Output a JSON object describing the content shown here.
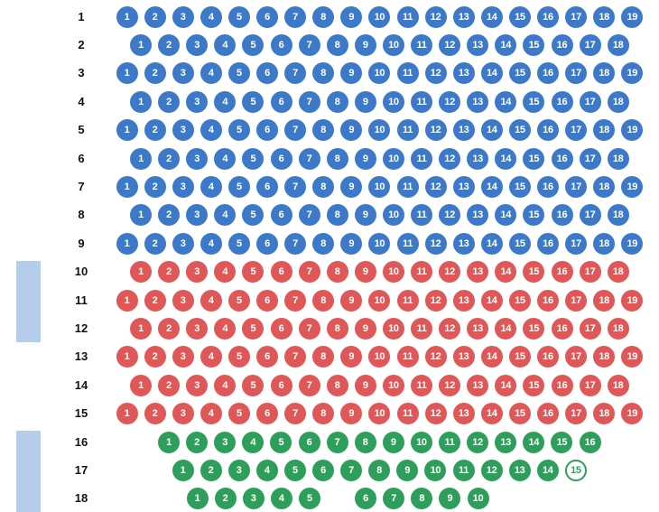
{
  "colors": {
    "blue": "#3d79c9",
    "red": "#e05757",
    "green": "#2e9e5b",
    "side_bar": "#b4cdea"
  },
  "rows": [
    {
      "label": "1",
      "zone": "blue",
      "seats": [
        "1",
        "2",
        "3",
        "4",
        "5",
        "6",
        "7",
        "8",
        "9",
        "10",
        "11",
        "12",
        "13",
        "14",
        "15",
        "16",
        "17",
        "18",
        "19"
      ]
    },
    {
      "label": "2",
      "zone": "blue",
      "seats": [
        "1",
        "2",
        "3",
        "4",
        "5",
        "6",
        "7",
        "8",
        "9",
        "10",
        "11",
        "12",
        "13",
        "14",
        "15",
        "16",
        "17",
        "18"
      ]
    },
    {
      "label": "3",
      "zone": "blue",
      "seats": [
        "1",
        "2",
        "3",
        "4",
        "5",
        "6",
        "7",
        "8",
        "9",
        "10",
        "11",
        "12",
        "13",
        "14",
        "15",
        "16",
        "17",
        "18",
        "19"
      ]
    },
    {
      "label": "4",
      "zone": "blue",
      "seats": [
        "1",
        "2",
        "3",
        "4",
        "5",
        "6",
        "7",
        "8",
        "9",
        "10",
        "11",
        "12",
        "13",
        "14",
        "15",
        "16",
        "17",
        "18"
      ]
    },
    {
      "label": "5",
      "zone": "blue",
      "seats": [
        "1",
        "2",
        "3",
        "4",
        "5",
        "6",
        "7",
        "8",
        "9",
        "10",
        "11",
        "12",
        "13",
        "14",
        "15",
        "16",
        "17",
        "18",
        "19"
      ]
    },
    {
      "label": "6",
      "zone": "blue",
      "seats": [
        "1",
        "2",
        "3",
        "4",
        "5",
        "6",
        "7",
        "8",
        "9",
        "10",
        "11",
        "12",
        "13",
        "14",
        "15",
        "16",
        "17",
        "18"
      ]
    },
    {
      "label": "7",
      "zone": "blue",
      "seats": [
        "1",
        "2",
        "3",
        "4",
        "5",
        "6",
        "7",
        "8",
        "9",
        "10",
        "11",
        "12",
        "13",
        "14",
        "15",
        "16",
        "17",
        "18",
        "19"
      ]
    },
    {
      "label": "8",
      "zone": "blue",
      "seats": [
        "1",
        "2",
        "3",
        "4",
        "5",
        "6",
        "7",
        "8",
        "9",
        "10",
        "11",
        "12",
        "13",
        "14",
        "15",
        "16",
        "17",
        "18"
      ]
    },
    {
      "label": "9",
      "zone": "blue",
      "seats": [
        "1",
        "2",
        "3",
        "4",
        "5",
        "6",
        "7",
        "8",
        "9",
        "10",
        "11",
        "12",
        "13",
        "14",
        "15",
        "16",
        "17",
        "18",
        "19"
      ]
    },
    {
      "label": "10",
      "zone": "red",
      "seats": [
        "1",
        "2",
        "3",
        "4",
        "5",
        "6",
        "7",
        "8",
        "9",
        "10",
        "11",
        "12",
        "13",
        "14",
        "15",
        "16",
        "17",
        "18"
      ]
    },
    {
      "label": "11",
      "zone": "red",
      "seats": [
        "1",
        "2",
        "3",
        "4",
        "5",
        "6",
        "7",
        "8",
        "9",
        "10",
        "11",
        "12",
        "13",
        "14",
        "15",
        "16",
        "17",
        "18",
        "19"
      ]
    },
    {
      "label": "12",
      "zone": "red",
      "seats": [
        "1",
        "2",
        "3",
        "4",
        "5",
        "6",
        "7",
        "8",
        "9",
        "10",
        "11",
        "12",
        "13",
        "14",
        "15",
        "16",
        "17",
        "18"
      ]
    },
    {
      "label": "13",
      "zone": "red",
      "seats": [
        "1",
        "2",
        "3",
        "4",
        "5",
        "6",
        "7",
        "8",
        "9",
        "10",
        "11",
        "12",
        "13",
        "14",
        "15",
        "16",
        "17",
        "18",
        "19"
      ]
    },
    {
      "label": "14",
      "zone": "red",
      "seats": [
        "1",
        "2",
        "3",
        "4",
        "5",
        "6",
        "7",
        "8",
        "9",
        "10",
        "11",
        "12",
        "13",
        "14",
        "15",
        "16",
        "17",
        "18"
      ]
    },
    {
      "label": "15",
      "zone": "red",
      "seats": [
        "1",
        "2",
        "3",
        "4",
        "5",
        "6",
        "7",
        "8",
        "9",
        "10",
        "11",
        "12",
        "13",
        "14",
        "15",
        "16",
        "17",
        "18",
        "19"
      ]
    },
    {
      "label": "16",
      "zone": "green",
      "seats": [
        "1",
        "2",
        "3",
        "4",
        "5",
        "6",
        "7",
        "8",
        "9",
        "10",
        "11",
        "12",
        "13",
        "14",
        "15",
        "16"
      ]
    },
    {
      "label": "17",
      "zone": "green",
      "seats": [
        "1",
        "2",
        "3",
        "4",
        "5",
        "6",
        "7",
        "8",
        "9",
        "10",
        "11",
        "12",
        "13",
        "14",
        "15"
      ],
      "outlined": [
        "15"
      ]
    },
    {
      "label": "18",
      "zone": "green",
      "seats": [
        "1",
        "2",
        "3",
        "4",
        "5",
        "",
        "6",
        "7",
        "8",
        "9",
        "10"
      ]
    }
  ]
}
